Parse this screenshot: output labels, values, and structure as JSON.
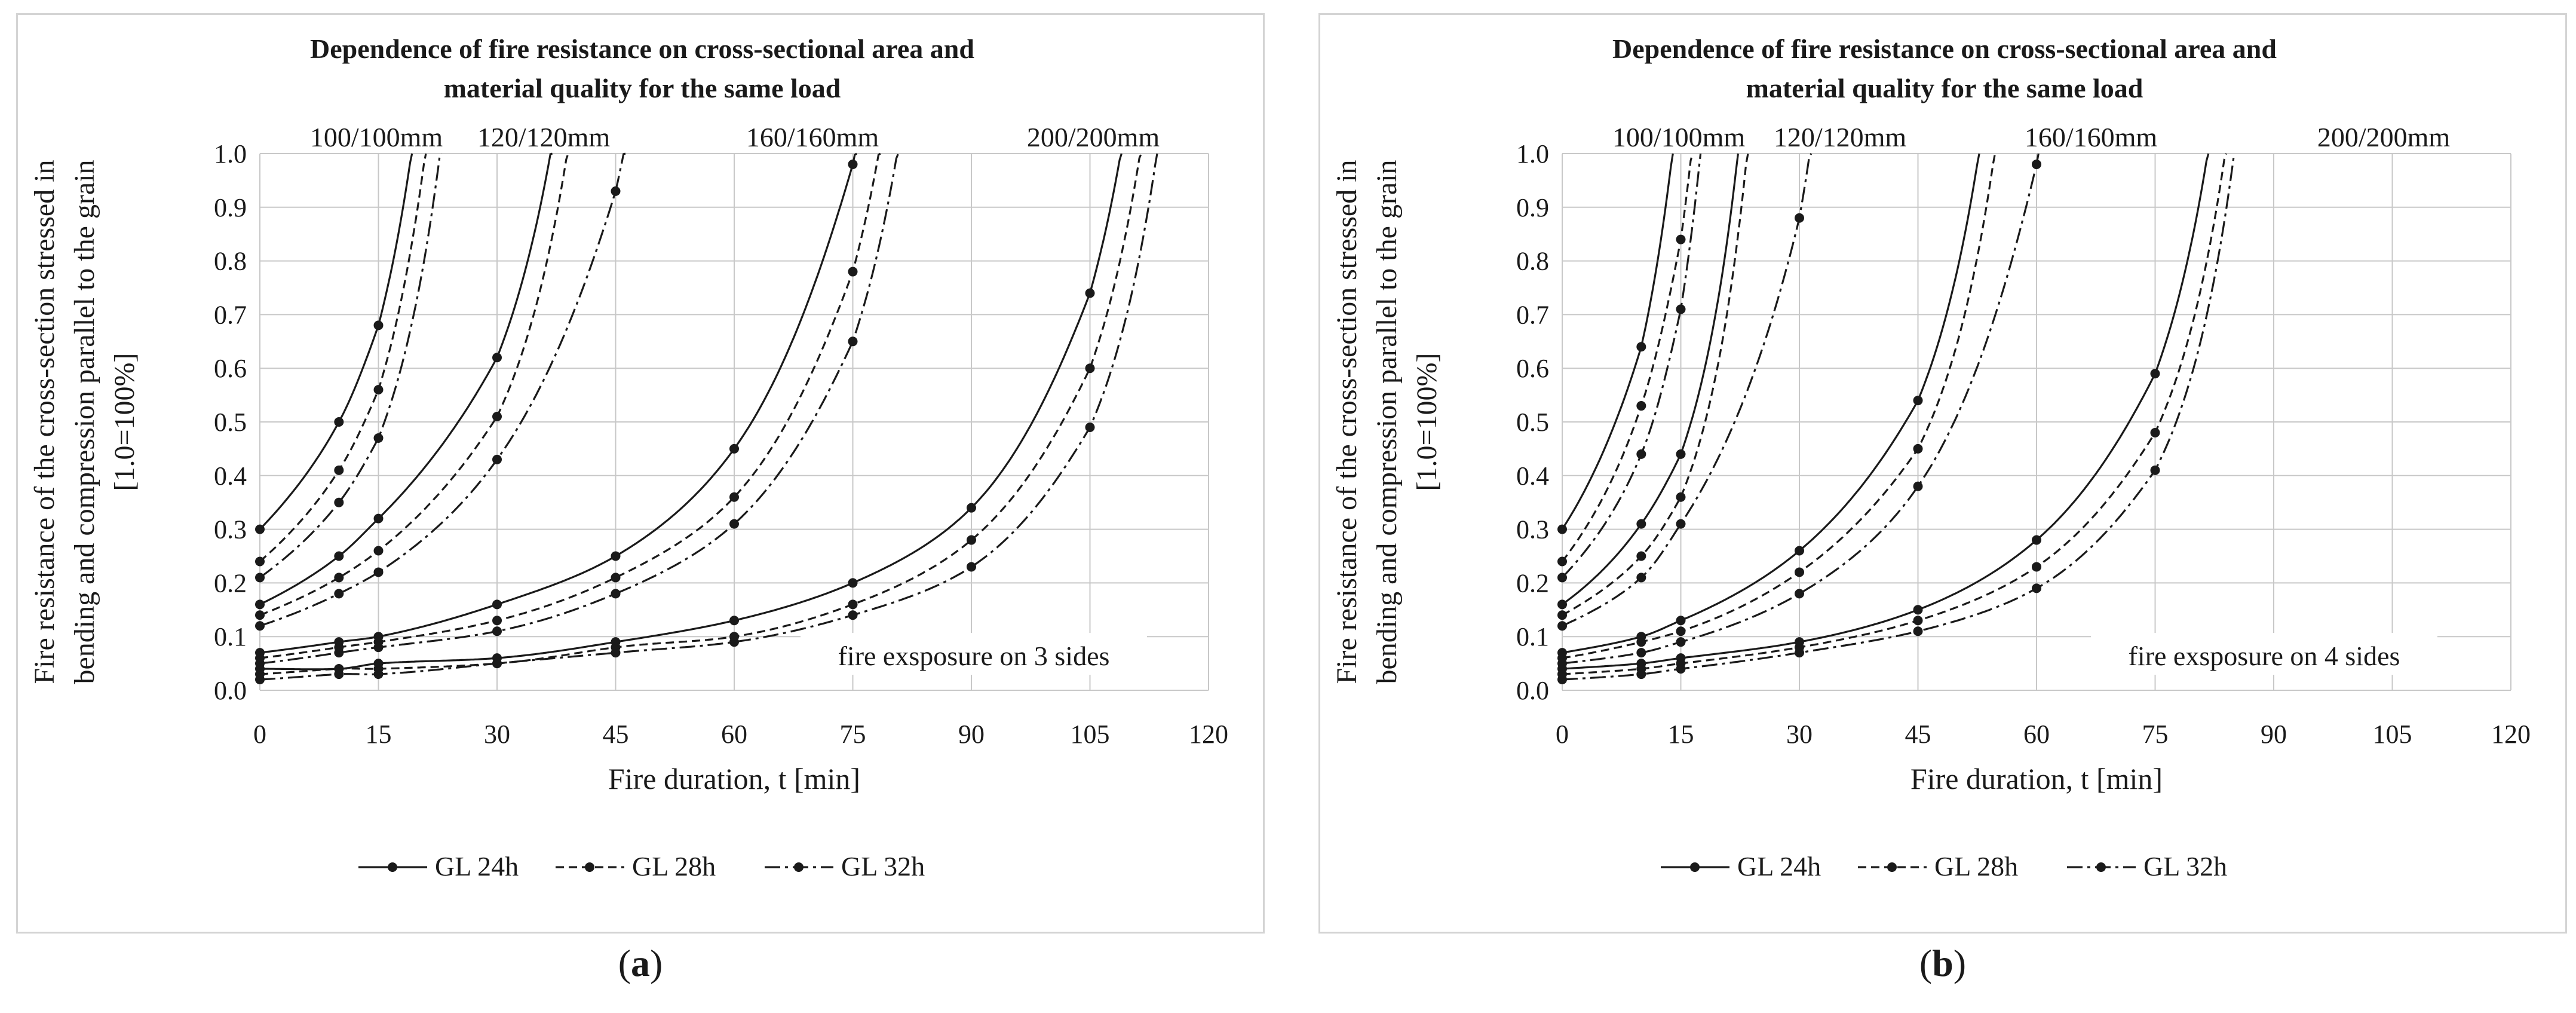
{
  "chart_data": [
    {
      "type": "line",
      "panel_label": "a",
      "title_lines": [
        "Dependence of fire resistance on cross-sectional  area and",
        "material quality for the same load"
      ],
      "xlabel": "Fire duration, t [min]",
      "ylabel_lines": [
        "Fire resistance of the cross-section stressed in",
        "bending and compression parallel to the grain",
        "[1.0=100%]"
      ],
      "xlim": [
        0,
        120
      ],
      "ylim": [
        0,
        1.0
      ],
      "x_ticks": [
        "0",
        "15",
        "30",
        "45",
        "60",
        "75",
        "90",
        "105",
        "120"
      ],
      "y_ticks": [
        "0.0",
        "0.1",
        "0.2",
        "0.3",
        "0.4",
        "0.5",
        "0.6",
        "0.7",
        "0.8",
        "0.9",
        "1.0"
      ],
      "section_labels": [
        "100/100mm",
        "120/120mm",
        "160/160mm",
        "200/200mm"
      ],
      "annotation": "fire exsposure on 3 sides",
      "legend": [
        "GL 24h",
        "GL 28h",
        "GL 32h"
      ],
      "series": [
        {
          "name": "GL 24h",
          "section": "100/100mm",
          "x": [
            0,
            10,
            15
          ],
          "y": [
            0.3,
            0.5,
            0.68
          ]
        },
        {
          "name": "GL 28h",
          "section": "100/100mm",
          "x": [
            0,
            10,
            15
          ],
          "y": [
            0.24,
            0.41,
            0.56
          ]
        },
        {
          "name": "GL 32h",
          "section": "100/100mm",
          "x": [
            0,
            10,
            15
          ],
          "y": [
            0.21,
            0.35,
            0.47
          ]
        },
        {
          "name": "GL 24h",
          "section": "120/120mm",
          "x": [
            0,
            10,
            15,
            30
          ],
          "y": [
            0.16,
            0.25,
            0.32,
            0.62
          ]
        },
        {
          "name": "GL 28h",
          "section": "120/120mm",
          "x": [
            0,
            10,
            15,
            30
          ],
          "y": [
            0.14,
            0.21,
            0.26,
            0.51
          ]
        },
        {
          "name": "GL 32h",
          "section": "120/120mm",
          "x": [
            0,
            10,
            15,
            30,
            45
          ],
          "y": [
            0.12,
            0.18,
            0.22,
            0.43,
            0.93
          ]
        },
        {
          "name": "GL 24h",
          "section": "160/160mm",
          "x": [
            0,
            10,
            15,
            30,
            45,
            60,
            75
          ],
          "y": [
            0.07,
            0.09,
            0.1,
            0.16,
            0.25,
            0.45,
            0.98
          ]
        },
        {
          "name": "GL 28h",
          "section": "160/160mm",
          "x": [
            0,
            10,
            15,
            30,
            45,
            60,
            75
          ],
          "y": [
            0.06,
            0.08,
            0.09,
            0.13,
            0.21,
            0.36,
            0.78
          ]
        },
        {
          "name": "GL 32h",
          "section": "160/160mm",
          "x": [
            0,
            10,
            15,
            30,
            45,
            60,
            75
          ],
          "y": [
            0.05,
            0.07,
            0.08,
            0.11,
            0.18,
            0.31,
            0.65
          ]
        },
        {
          "name": "GL 24h",
          "section": "200/200mm",
          "x": [
            0,
            10,
            15,
            30,
            45,
            60,
            75,
            90,
            105
          ],
          "y": [
            0.04,
            0.04,
            0.05,
            0.06,
            0.09,
            0.13,
            0.2,
            0.34,
            0.74
          ]
        },
        {
          "name": "GL 28h",
          "section": "200/200mm",
          "x": [
            0,
            10,
            15,
            30,
            45,
            60,
            75,
            90,
            105
          ],
          "y": [
            0.03,
            0.04,
            0.04,
            0.05,
            0.08,
            0.1,
            0.16,
            0.28,
            0.6
          ]
        },
        {
          "name": "GL 32h",
          "section": "200/200mm",
          "x": [
            0,
            10,
            15,
            30,
            45,
            60,
            75,
            90,
            105
          ],
          "y": [
            0.02,
            0.03,
            0.03,
            0.05,
            0.07,
            0.09,
            0.14,
            0.23,
            0.49
          ]
        }
      ]
    },
    {
      "type": "line",
      "panel_label": "b",
      "title_lines": [
        "Dependence of fire resistance on cross-sectional  area and",
        "material quality for the same load"
      ],
      "xlabel": "Fire duration, t [min]",
      "ylabel_lines": [
        "Fire resistance of the cross-section stressed in",
        "bending and compression parallel to the grain",
        "[1.0=100%]"
      ],
      "xlim": [
        0,
        120
      ],
      "ylim": [
        0,
        1.0
      ],
      "x_ticks": [
        "0",
        "15",
        "30",
        "45",
        "60",
        "75",
        "90",
        "105",
        "120"
      ],
      "y_ticks": [
        "0.0",
        "0.1",
        "0.2",
        "0.3",
        "0.4",
        "0.5",
        "0.6",
        "0.7",
        "0.8",
        "0.9",
        "1.0"
      ],
      "section_labels": [
        "100/100mm",
        "120/120mm",
        "160/160mm",
        "200/200mm"
      ],
      "annotation": "fire exsposure on 4 sides",
      "legend": [
        "GL 24h",
        "GL 28h",
        "GL 32h"
      ],
      "series": [
        {
          "name": "GL 24h",
          "section": "100/100mm",
          "x": [
            0,
            10
          ],
          "y": [
            0.3,
            0.64
          ]
        },
        {
          "name": "GL 28h",
          "section": "100/100mm",
          "x": [
            0,
            10,
            15
          ],
          "y": [
            0.24,
            0.53,
            0.84
          ]
        },
        {
          "name": "GL 32h",
          "section": "100/100mm",
          "x": [
            0,
            10,
            15
          ],
          "y": [
            0.21,
            0.44,
            0.71
          ]
        },
        {
          "name": "GL 24h",
          "section": "120/120mm",
          "x": [
            0,
            10,
            15
          ],
          "y": [
            0.16,
            0.31,
            0.44
          ]
        },
        {
          "name": "GL 28h",
          "section": "120/120mm",
          "x": [
            0,
            10,
            15
          ],
          "y": [
            0.14,
            0.25,
            0.36
          ]
        },
        {
          "name": "GL 32h",
          "section": "120/120mm",
          "x": [
            0,
            10,
            15,
            30
          ],
          "y": [
            0.12,
            0.21,
            0.31,
            0.88
          ]
        },
        {
          "name": "GL 24h",
          "section": "160/160mm",
          "x": [
            0,
            10,
            15,
            30,
            45
          ],
          "y": [
            0.07,
            0.1,
            0.13,
            0.26,
            0.54
          ]
        },
        {
          "name": "GL 28h",
          "section": "160/160mm",
          "x": [
            0,
            10,
            15,
            30,
            45
          ],
          "y": [
            0.06,
            0.09,
            0.11,
            0.22,
            0.45
          ]
        },
        {
          "name": "GL 32h",
          "section": "160/160mm",
          "x": [
            0,
            10,
            15,
            30,
            45,
            60
          ],
          "y": [
            0.05,
            0.07,
            0.09,
            0.18,
            0.38,
            0.98
          ]
        },
        {
          "name": "GL 24h",
          "section": "200/200mm",
          "x": [
            0,
            10,
            15,
            30,
            45,
            60,
            75
          ],
          "y": [
            0.04,
            0.05,
            0.06,
            0.09,
            0.15,
            0.28,
            0.59
          ]
        },
        {
          "name": "GL 28h",
          "section": "200/200mm",
          "x": [
            0,
            10,
            15,
            30,
            45,
            60,
            75
          ],
          "y": [
            0.03,
            0.04,
            0.05,
            0.08,
            0.13,
            0.23,
            0.48
          ]
        },
        {
          "name": "GL 32h",
          "section": "200/200mm",
          "x": [
            0,
            10,
            15,
            30,
            45,
            60,
            75
          ],
          "y": [
            0.02,
            0.03,
            0.04,
            0.07,
            0.11,
            0.19,
            0.41
          ]
        }
      ]
    }
  ]
}
